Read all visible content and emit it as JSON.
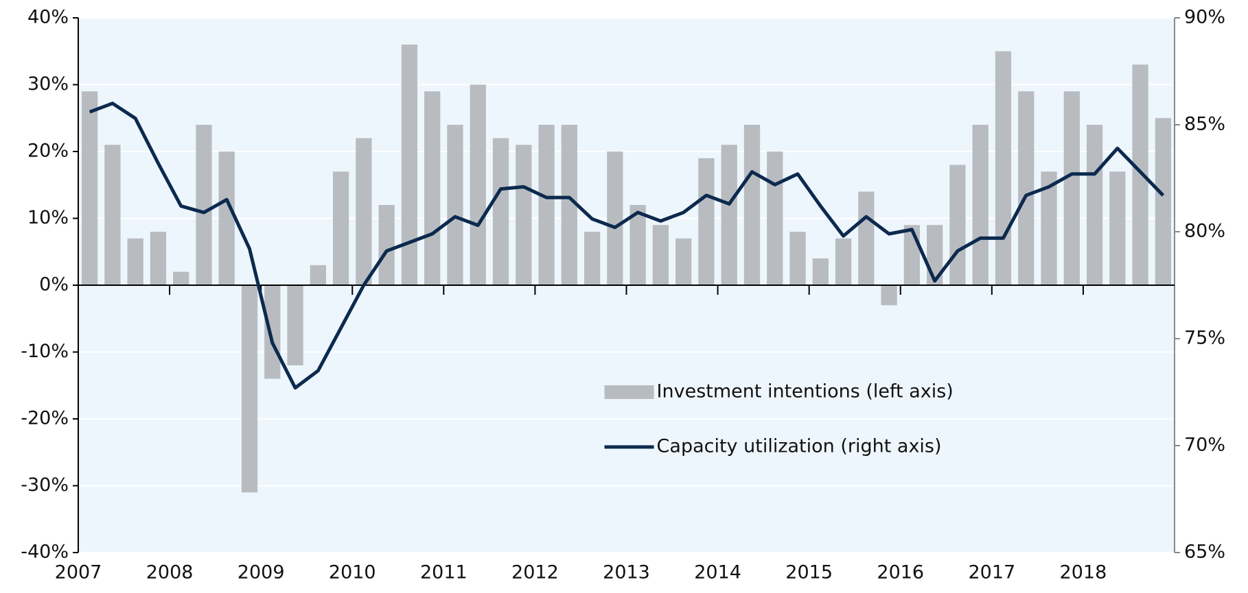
{
  "chart_data": {
    "type": "bar+line",
    "categories": [
      "2007",
      null,
      null,
      null,
      "2008",
      null,
      null,
      null,
      "2009",
      null,
      null,
      null,
      "2010",
      null,
      null,
      null,
      "2011",
      null,
      null,
      null,
      "2012",
      null,
      null,
      null,
      "2013",
      null,
      null,
      null,
      "2014",
      null,
      null,
      null,
      "2015",
      null,
      null,
      null,
      "2016",
      null,
      null,
      null,
      "2017",
      null,
      null,
      null,
      "2018",
      null,
      null,
      null
    ],
    "series": [
      {
        "name": "Investment intentions (left axis)",
        "type": "bar",
        "color": "#b8bcc0",
        "axis": "y",
        "values": [
          29,
          21,
          7,
          8,
          2,
          24,
          20,
          -31,
          -14,
          -12,
          3,
          17,
          22,
          12,
          36,
          29,
          24,
          30,
          22,
          21,
          24,
          24,
          8,
          20,
          12,
          9,
          7,
          19,
          21,
          24,
          20,
          8,
          4,
          7,
          14,
          -3,
          9,
          9,
          18,
          24,
          35,
          29,
          17,
          29,
          24,
          17,
          33,
          25
        ]
      },
      {
        "name": "Capacity utilization (right axis)",
        "type": "line",
        "color": "#0c2a4e",
        "axis": "y2",
        "values": [
          85.6,
          86.0,
          85.3,
          83.2,
          81.2,
          80.9,
          81.5,
          79.2,
          74.8,
          72.7,
          73.5,
          75.5,
          77.5,
          79.1,
          79.5,
          79.9,
          80.7,
          80.3,
          82.0,
          82.1,
          81.6,
          81.6,
          80.6,
          80.2,
          80.9,
          80.5,
          80.9,
          81.7,
          81.3,
          82.8,
          82.2,
          82.7,
          81.2,
          79.8,
          80.7,
          79.9,
          80.1,
          77.7,
          79.1,
          79.7,
          79.7,
          81.7,
          82.1,
          82.7,
          82.7,
          83.9,
          82.8,
          81.7
        ]
      }
    ],
    "ylim": [
      -40,
      40
    ],
    "yticks": [
      {
        "value": -40,
        "label": "-40%"
      },
      {
        "value": -30,
        "label": "-30%"
      },
      {
        "value": -20,
        "label": "-20%"
      },
      {
        "value": -10,
        "label": "-10%"
      },
      {
        "value": 0,
        "label": "0%"
      },
      {
        "value": 10,
        "label": "10%"
      },
      {
        "value": 20,
        "label": "20%"
      },
      {
        "value": 30,
        "label": "30%"
      },
      {
        "value": 40,
        "label": "40%"
      }
    ],
    "y2lim": [
      65,
      90
    ],
    "y2ticks": [
      {
        "value": 65,
        "label": "65%"
      },
      {
        "value": 70,
        "label": "70%"
      },
      {
        "value": 75,
        "label": "75%"
      },
      {
        "value": 80,
        "label": "80%"
      },
      {
        "value": 85,
        "label": "85%"
      },
      {
        "value": 90,
        "label": "90%"
      }
    ],
    "grid": true,
    "legend": "lower center"
  }
}
